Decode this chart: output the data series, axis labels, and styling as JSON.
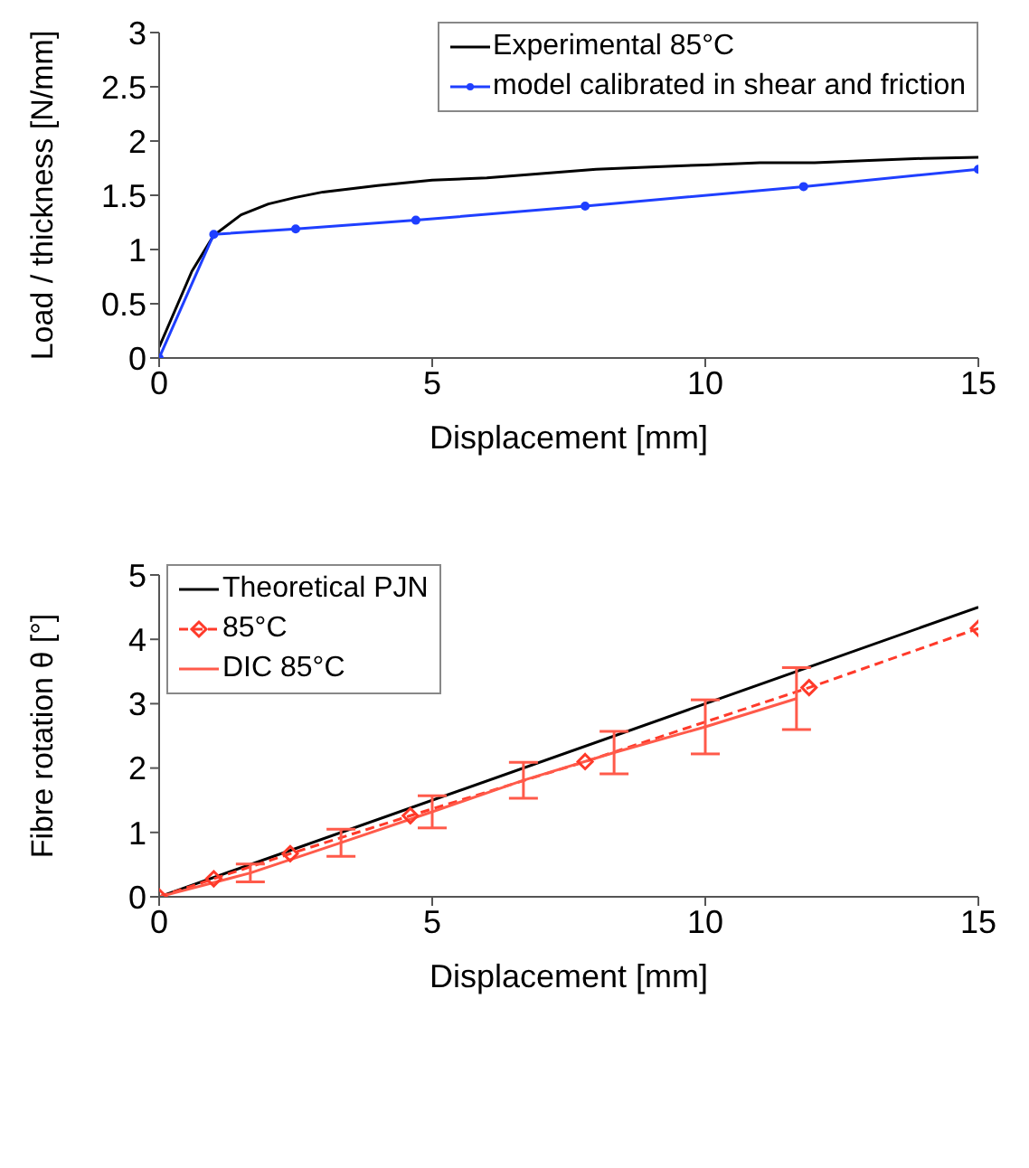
{
  "chart_data": [
    {
      "type": "line",
      "xlabel": "Displacement [mm]",
      "ylabel": "Load / thickness [N/mm]",
      "xlim": [
        0,
        15
      ],
      "ylim": [
        0,
        3
      ],
      "xticks": [
        0,
        5,
        10,
        15
      ],
      "yticks": [
        0,
        0.5,
        1,
        1.5,
        2,
        2.5,
        3
      ],
      "legend": "top right",
      "series": [
        {
          "name": "Experimental 85°C",
          "color": "#000000",
          "marker": "none",
          "x": [
            0,
            0.3,
            0.6,
            1,
            1.5,
            2,
            2.5,
            3,
            4,
            5,
            6,
            7,
            8,
            9,
            10,
            11,
            12,
            13,
            14,
            15
          ],
          "values": [
            0.1,
            0.45,
            0.8,
            1.13,
            1.32,
            1.42,
            1.48,
            1.53,
            1.59,
            1.64,
            1.66,
            1.7,
            1.74,
            1.76,
            1.78,
            1.8,
            1.8,
            1.82,
            1.84,
            1.85
          ]
        },
        {
          "name": "model calibrated in shear and friction",
          "color": "#1f3fff",
          "marker": "circle",
          "x": [
            0,
            1,
            2.5,
            4.7,
            7.8,
            11.8,
            15
          ],
          "values": [
            0,
            1.14,
            1.19,
            1.27,
            1.4,
            1.58,
            1.74
          ]
        }
      ]
    },
    {
      "type": "line",
      "xlabel": "Displacement [mm]",
      "ylabel": "Fibre rotation θ [°]",
      "xlim": [
        0,
        15
      ],
      "ylim": [
        0,
        5
      ],
      "xticks": [
        0,
        5,
        10,
        15
      ],
      "yticks": [
        0,
        1,
        2,
        3,
        4,
        5
      ],
      "legend": "top left",
      "series": [
        {
          "name": "Theoretical PJN",
          "color": "#000000",
          "marker": "none",
          "x": [
            0,
            15
          ],
          "values": [
            0,
            4.5
          ]
        },
        {
          "name": "85°C",
          "color": "#ff3a2a",
          "marker": "diamond",
          "line_style": "dashed",
          "x": [
            0,
            1,
            2.4,
            4.6,
            7.8,
            11.9,
            15
          ],
          "values": [
            0,
            0.28,
            0.67,
            1.26,
            2.1,
            3.25,
            4.17
          ]
        },
        {
          "name": "DIC 85°C",
          "color": "#ff5a4a",
          "marker": "none",
          "x": [
            0,
            1.67,
            3.33,
            5,
            6.67,
            8.33,
            10,
            11.67
          ],
          "values": [
            0,
            0.37,
            0.84,
            1.32,
            1.81,
            2.24,
            2.64,
            3.08
          ],
          "errors": [
            null,
            0.14,
            0.21,
            0.25,
            0.28,
            0.33,
            0.42,
            0.48
          ]
        }
      ]
    }
  ]
}
